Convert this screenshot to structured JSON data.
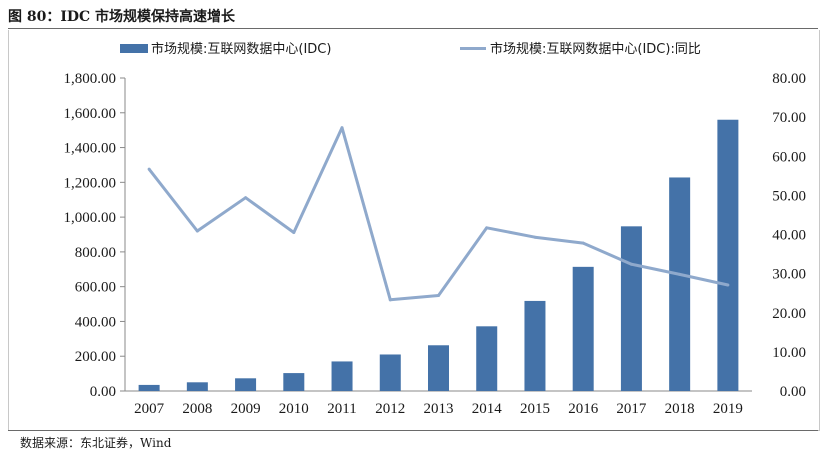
{
  "figure": {
    "title": "图 80：IDC 市场规模保持高速增长",
    "source": "数据来源：东北证券，Wind"
  },
  "chart_data": {
    "type": "bar",
    "categories": [
      "2007",
      "2008",
      "2009",
      "2010",
      "2011",
      "2012",
      "2013",
      "2014",
      "2015",
      "2016",
      "2017",
      "2018",
      "2019"
    ],
    "series": [
      {
        "name": "市场规模:互联网数据中心(IDC)",
        "type": "bar",
        "axis": "left",
        "color": "#4472a8",
        "values": [
          35,
          50,
          73,
          103,
          170,
          210,
          263,
          372,
          518,
          714,
          947,
          1228,
          1560
        ]
      },
      {
        "name": "市场规模:互联网数据中心(IDC):同比",
        "type": "line",
        "axis": "right",
        "color": "#8fa9cc",
        "values": [
          56.7,
          40.9,
          49.4,
          40.5,
          67.3,
          23.3,
          24.4,
          41.7,
          39.3,
          37.8,
          32.4,
          29.8,
          27.1
        ]
      }
    ],
    "y_left": {
      "ylim": [
        0,
        1800
      ],
      "ticks": [
        "0.00",
        "200.00",
        "400.00",
        "600.00",
        "800.00",
        "1,000.00",
        "1,200.00",
        "1,400.00",
        "1,600.00",
        "1,800.00"
      ]
    },
    "y_right": {
      "ylim": [
        0,
        80
      ],
      "ticks": [
        "0.00",
        "10.00",
        "20.00",
        "30.00",
        "40.00",
        "50.00",
        "60.00",
        "70.00",
        "80.00"
      ]
    },
    "grid": false,
    "legend_position": "top"
  }
}
